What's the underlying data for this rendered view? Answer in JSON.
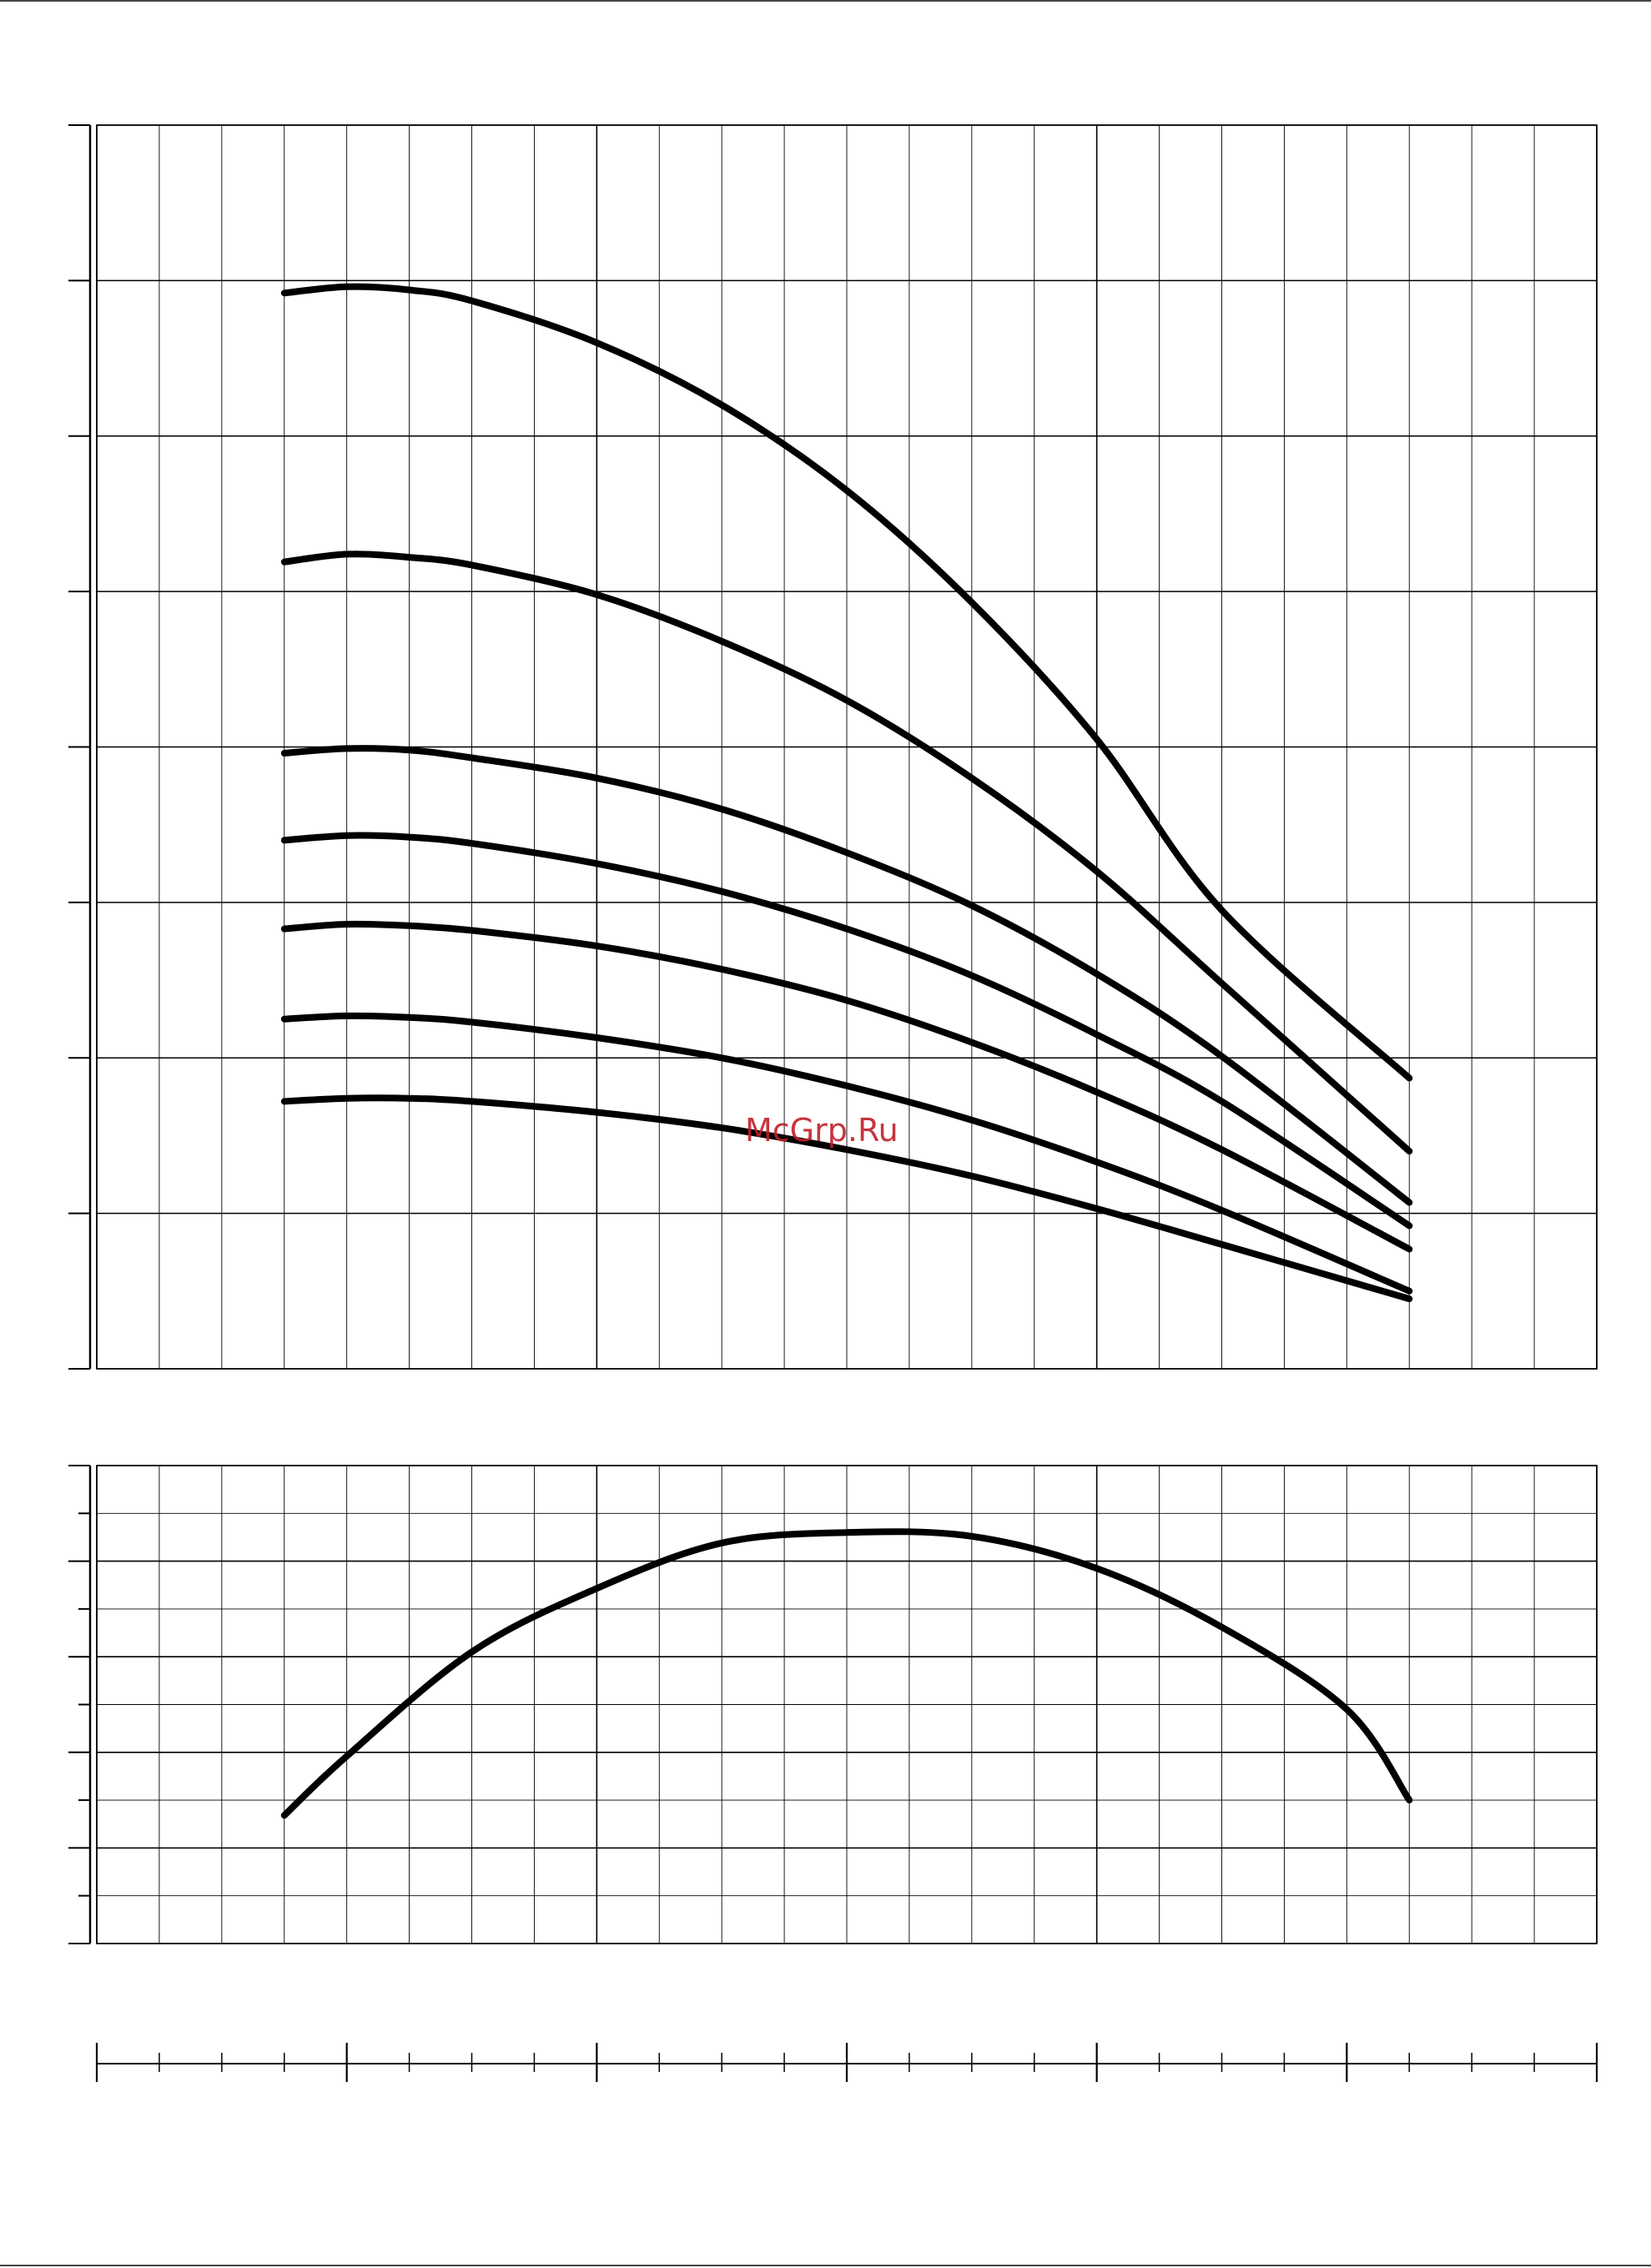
{
  "watermark": "McGrp.Ru",
  "colors": {
    "grid": "#000000",
    "curve": "#000000",
    "watermark": "#c0202a"
  },
  "chart_data": [
    {
      "name": "head-curves",
      "type": "line",
      "title": "",
      "xlabel": "",
      "ylabel": "",
      "xlim": [
        0,
        24
      ],
      "ylim": [
        0,
        8
      ],
      "grid": true,
      "x_grid_step": 1,
      "y_grid_step": 1,
      "x_major_every": 8,
      "series": [
        {
          "x": [
            3,
            4,
            5,
            6,
            8,
            10,
            12,
            14,
            16,
            18,
            21
          ],
          "y": [
            6.92,
            6.96,
            6.94,
            6.87,
            6.6,
            6.2,
            5.65,
            4.93,
            4.05,
            2.95,
            1.87
          ]
        },
        {
          "x": [
            3,
            4,
            5,
            6,
            8,
            10,
            12,
            14,
            16,
            18,
            21
          ],
          "y": [
            5.19,
            5.24,
            5.22,
            5.17,
            4.98,
            4.68,
            4.3,
            3.8,
            3.2,
            2.48,
            1.4
          ]
        },
        {
          "x": [
            3,
            4,
            5,
            6,
            8,
            10,
            12,
            14,
            16,
            18,
            21
          ],
          "y": [
            3.96,
            3.99,
            3.98,
            3.93,
            3.8,
            3.6,
            3.32,
            2.98,
            2.54,
            2.01,
            1.07
          ]
        },
        {
          "x": [
            3,
            4,
            5,
            6,
            8,
            10,
            12,
            14,
            16,
            18,
            21
          ],
          "y": [
            3.4,
            3.43,
            3.42,
            3.38,
            3.25,
            3.07,
            2.83,
            2.53,
            2.15,
            1.72,
            0.92
          ]
        },
        {
          "x": [
            3,
            4,
            5,
            6,
            8,
            10,
            12,
            14,
            16,
            18,
            21
          ],
          "y": [
            2.83,
            2.86,
            2.85,
            2.82,
            2.72,
            2.57,
            2.37,
            2.1,
            1.78,
            1.41,
            0.77
          ]
        },
        {
          "x": [
            3,
            4,
            5,
            6,
            8,
            10,
            12,
            14,
            16,
            18,
            21
          ],
          "y": [
            2.25,
            2.27,
            2.26,
            2.23,
            2.13,
            2.0,
            1.82,
            1.6,
            1.33,
            1.02,
            0.5
          ]
        },
        {
          "x": [
            3,
            4,
            5,
            6,
            8,
            10,
            12,
            14,
            16,
            18,
            21
          ],
          "y": [
            1.72,
            1.74,
            1.74,
            1.72,
            1.65,
            1.55,
            1.41,
            1.24,
            1.03,
            0.8,
            0.45
          ]
        }
      ]
    },
    {
      "name": "efficiency-curve",
      "type": "line",
      "title": "",
      "xlabel": "",
      "ylabel": "",
      "xlim": [
        0,
        24
      ],
      "ylim": [
        0,
        10
      ],
      "grid": true,
      "x_grid_step": 1,
      "y_grid_step": 1,
      "x_major_every": 8,
      "y_major_every": 2,
      "series": [
        {
          "x": [
            3,
            4,
            6,
            8,
            10,
            12,
            14,
            16,
            18,
            20,
            21
          ],
          "y": [
            2.68,
            3.92,
            6.1,
            7.43,
            8.38,
            8.6,
            8.52,
            7.85,
            6.62,
            4.9,
            3.0
          ]
        }
      ]
    },
    {
      "name": "bottom-scale",
      "type": "scale",
      "xlim": [
        0,
        24
      ],
      "minor_step": 1,
      "major_every": 4
    }
  ]
}
